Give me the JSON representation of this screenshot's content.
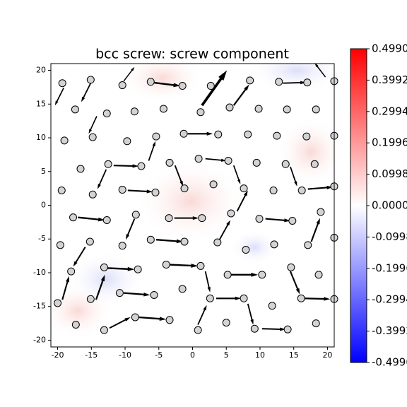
{
  "chart_data": {
    "type": "quiver",
    "title": "bcc screw: screw component",
    "xlim": [
      -21,
      21
    ],
    "ylim": [
      -21,
      21
    ],
    "xticks": [
      -20,
      -15,
      -10,
      -5,
      0,
      5,
      10,
      15,
      20
    ],
    "yticks": [
      -20,
      -15,
      -10,
      -5,
      0,
      5,
      10,
      15,
      20
    ],
    "atoms": {
      "color": "#d3d3d3",
      "x": [
        -19.3,
        -15.1,
        -10.4,
        -6.2,
        -1.5,
        2.7,
        8.5,
        12.8,
        17.0,
        21.0,
        -17.4,
        -12.7,
        -8.6,
        -4.3,
        1.2,
        5.5,
        9.8,
        14.0,
        18.3,
        -19.0,
        -14.8,
        -9.7,
        -5.4,
        -1.3,
        3.8,
        8.2,
        12.5,
        16.9,
        21.0,
        -16.6,
        -12.5,
        -7.6,
        -3.4,
        0.9,
        5.3,
        9.5,
        13.8,
        18.1,
        -19.4,
        -14.8,
        -10.4,
        -5.5,
        -1.2,
        3.1,
        7.6,
        12.0,
        16.2,
        21.0,
        -17.7,
        -12.7,
        -8.4,
        -3.5,
        1.4,
        5.7,
        9.9,
        14.8,
        19.0,
        -19.6,
        -15.2,
        -10.4,
        -6.2,
        -1.2,
        3.7,
        7.9,
        12.1,
        17.1,
        21.0,
        -18.0,
        -13.1,
        -8.1,
        -3.9,
        1.2,
        5.2,
        10.3,
        14.6,
        18.7,
        -20.0,
        -15.1,
        -10.8,
        -5.7,
        -1.5,
        2.6,
        7.6,
        11.8,
        16.1,
        21.0,
        -17.3,
        -13.1,
        -8.5,
        -3.4,
        0.8,
        5.0,
        9.2,
        14.1,
        18.3
      ],
      "y": [
        18.1,
        18.6,
        17.8,
        18.3,
        17.7,
        17.7,
        18.5,
        18.3,
        18.2,
        18.4,
        14.2,
        13.6,
        13.9,
        14.3,
        13.8,
        14.5,
        14.3,
        14.2,
        14.2,
        9.6,
        10.1,
        9.5,
        10.2,
        10.6,
        10.5,
        10.5,
        10.3,
        10.2,
        10.3,
        5.4,
        6.1,
        5.8,
        6.3,
        6.9,
        6.6,
        6.3,
        6.1,
        6.1,
        2.2,
        1.6,
        2.3,
        1.9,
        2.5,
        3.1,
        2.5,
        2.2,
        2.2,
        2.8,
        -1.8,
        -2.2,
        -1.4,
        -1.9,
        -1.9,
        -1.2,
        -2.0,
        -2.3,
        -1.0,
        -5.9,
        -5.4,
        -6.0,
        -5.1,
        -5.4,
        -5.5,
        -6.6,
        -5.8,
        -5.9,
        -4.8,
        -9.8,
        -9.2,
        -9.5,
        -8.8,
        -9.0,
        -10.3,
        -10.3,
        -9.2,
        -10.3,
        -14.5,
        -13.9,
        -13.0,
        -13.3,
        -12.4,
        -13.8,
        -13.8,
        -14.9,
        -13.8,
        -13.9,
        -17.7,
        -18.5,
        -16.6,
        -17.0,
        -18.5,
        -17.4,
        -18.3,
        -18.4,
        -17.5
      ]
    },
    "arrows": {
      "color": "#000000",
      "x": [
        -19.1,
        -15.1,
        -10.2,
        -6.0,
        1.4,
        6.1,
        13.4,
        19.7,
        -14.2,
        -0.7,
        -6.5,
        -2.6,
        1.9,
        6.1,
        14.5,
        17.1,
        -11.7,
        -12.8,
        -9.6,
        -2.7,
        -17.0,
        -8.6,
        6.6,
        10.8,
        -5.4,
        4.0,
        17.6,
        -15.9,
        -12.8,
        -3.4,
        5.5,
        1.9,
        14.5,
        -19.3,
        -14.3,
        -10.2,
        3.5,
        16.5,
        8.2,
        -12.3,
        -8.0,
        0.8,
        10.3
      ],
      "y": [
        17.4,
        18.1,
        18.4,
        18.2,
        14.8,
        14.8,
        18.1,
        19.0,
        13.2,
        10.6,
        6.6,
        5.9,
        6.9,
        5.9,
        5.7,
        2.4,
        5.9,
        5.3,
        2.2,
        -1.9,
        -1.8,
        -2.0,
        -0.9,
        -2.0,
        -5.1,
        -5.1,
        -5.4,
        -6.2,
        -9.3,
        -8.8,
        -10.3,
        -9.8,
        -9.8,
        -14.0,
        -14.0,
        -13.0,
        -13.8,
        -13.8,
        -14.6,
        -18.2,
        -16.6,
        -17.7,
        -18.3
      ],
      "u": [
        -1.3,
        -1.4,
        1.6,
        4.2,
        3.7,
        2.3,
        3.4,
        -1.6,
        -1.2,
        3.7,
        1.0,
        1.2,
        3.1,
        1.0,
        1.0,
        3.7,
        3.7,
        -1.3,
        3.7,
        3.6,
        4.0,
        -1.3,
        1.6,
        3.7,
        4.0,
        1.6,
        1.3,
        -1.8,
        4.2,
        4.2,
        4.2,
        0.7,
        1.4,
        1.0,
        1.3,
        3.9,
        3.7,
        3.9,
        0.8,
        3.1,
        4.1,
        1.3,
        3.5
      ],
      "v": [
        -2.6,
        -2.8,
        2.1,
        -0.5,
        5.2,
        3.1,
        0.1,
        2.1,
        -2.6,
        0,
        2.9,
        -3.1,
        -0.3,
        -2.8,
        -2.9,
        0.3,
        -0.1,
        -2.9,
        -0.2,
        0,
        -0.4,
        -3.1,
        3.1,
        -0.3,
        -0.3,
        2.9,
        3.5,
        -2.9,
        -0.2,
        -0.2,
        0,
        -3.1,
        -3.4,
        3.5,
        3.7,
        -0.3,
        0,
        -0.1,
        -3.1,
        1.6,
        -0.3,
        2.9,
        -0.1
      ]
    },
    "colormap": [
      "#0000ff",
      "#ffffff",
      "#ff0000"
    ],
    "colorbar": {
      "lim": [
        -0.499,
        0.499
      ],
      "ticks": [
        {
          "value": 0.499,
          "label": "0.4990"
        },
        0.3992,
        0.2994,
        0.1996,
        0.0998,
        {
          "value": 0,
          "label": "0.0000"
        },
        -0.0998,
        -0.1996,
        -0.2994,
        -0.3992,
        {
          "value": -0.499,
          "label": "-0.4990"
        }
      ]
    }
  }
}
